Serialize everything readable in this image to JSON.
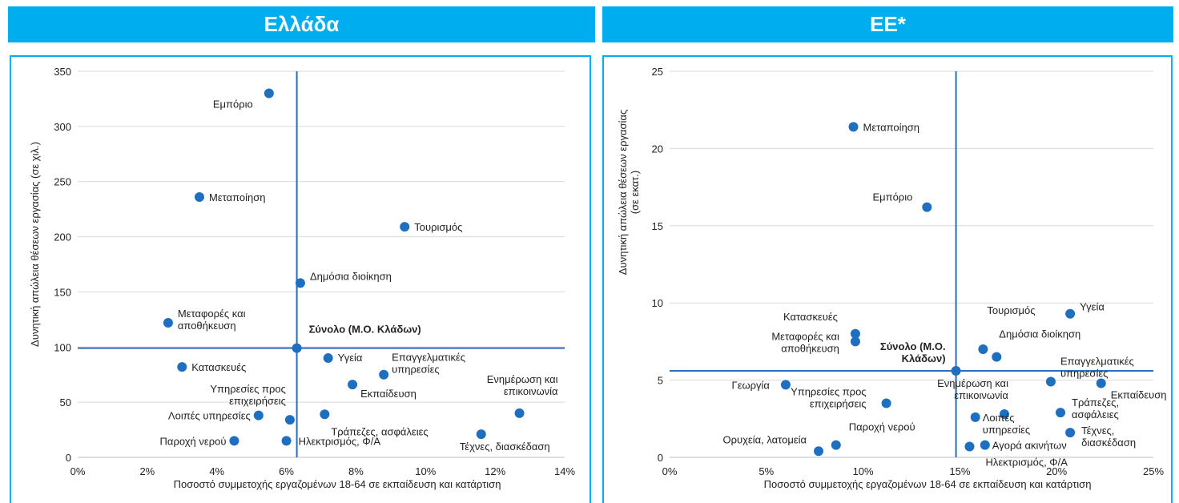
{
  "chart_data": [
    {
      "type": "scatter",
      "title": "Ελλάδα",
      "xlabel": "Ποσοστό συμμετοχής εργαζομένων 18-64 σε εκπαίδευση και κατάρτιση",
      "ylabel": "Δυνητική απώλεια θέσεων εργασίας (σε χιλ.)",
      "xlim": [
        0,
        14
      ],
      "ylim": [
        0,
        350
      ],
      "xticks": [
        "0%",
        "2%",
        "4%",
        "6%",
        "8%",
        "10%",
        "12%",
        "14%"
      ],
      "yticks": [
        "0",
        "50",
        "100",
        "150",
        "200",
        "250",
        "300",
        "350"
      ],
      "grid": "horizontal",
      "point_color": "#1f6fc1",
      "reference_lines": {
        "x": 6.3,
        "y": 99
      },
      "points": [
        {
          "label": "Εμπόριο",
          "x": 5.5,
          "y": 330
        },
        {
          "label": "Μεταποίηση",
          "x": 3.5,
          "y": 236
        },
        {
          "label": "Τουρισμός",
          "x": 9.4,
          "y": 209
        },
        {
          "label": "Δημόσια διοίκηση",
          "x": 6.4,
          "y": 158
        },
        {
          "label": "Μεταφορές και αποθήκευση",
          "x": 2.6,
          "y": 122
        },
        {
          "label": "Σύνολο (Μ.Ο. Κλάδων)",
          "x": 6.3,
          "y": 99,
          "bold": true
        },
        {
          "label": "Υγεία",
          "x": 7.2,
          "y": 90
        },
        {
          "label": "Επαγγελματικές υπηρεσίες",
          "x": 8.8,
          "y": 75
        },
        {
          "label": "Κατασκευές",
          "x": 3.0,
          "y": 82
        },
        {
          "label": "Εκπαίδευση",
          "x": 7.9,
          "y": 66
        },
        {
          "label": "Υπηρεσίες προς επιχειρήσεις",
          "x": 6.1,
          "y": 34
        },
        {
          "label": "Ενημέρωση και επικοινωνία",
          "x": 12.7,
          "y": 40
        },
        {
          "label": "Λοιπές υπηρεσίες",
          "x": 5.2,
          "y": 38
        },
        {
          "label": "Τράπεζες, ασφάλειες",
          "x": 7.1,
          "y": 39
        },
        {
          "label": "Τέχνες, διασκέδαση",
          "x": 11.6,
          "y": 21
        },
        {
          "label": "Παροχή νερού",
          "x": 4.5,
          "y": 15
        },
        {
          "label": "Ηλεκτρισμός, Φ/Α",
          "x": 6.0,
          "y": 15
        }
      ]
    },
    {
      "type": "scatter",
      "title": "ΕΕ*",
      "xlabel": "Ποσοστό συμμετοχής εργαζομένων 18-64 σε εκπαίδευση και κατάρτιση",
      "ylabel": "Δυνητική απώλεια θέσεων εργασίας (σε εκατ.)",
      "xlim": [
        0,
        25
      ],
      "ylim": [
        0,
        25
      ],
      "xticks": [
        "0%",
        "5%",
        "10%",
        "15%",
        "20%",
        "25%"
      ],
      "yticks": [
        "0",
        "5",
        "10",
        "15",
        "20",
        "25"
      ],
      "grid": "horizontal",
      "point_color": "#1f6fc1",
      "reference_lines": {
        "x": 14.8,
        "y": 5.6
      },
      "points": [
        {
          "label": "Μεταποίηση",
          "x": 9.5,
          "y": 21.4
        },
        {
          "label": "Εμπόριο",
          "x": 13.3,
          "y": 16.2
        },
        {
          "label": "Υγεία",
          "x": 20.7,
          "y": 9.3
        },
        {
          "label": "Τουρισμός",
          "x": 16.2,
          "y": 7.0
        },
        {
          "label": "Δημόσια διοίκηση",
          "x": 16.9,
          "y": 6.5
        },
        {
          "label": "Κατασκευές",
          "x": 9.6,
          "y": 8.0
        },
        {
          "label": "Μεταφορές και αποθήκευση",
          "x": 9.6,
          "y": 7.5
        },
        {
          "label": "Σύνολο (Μ.Ο. Κλάδων)",
          "x": 14.8,
          "y": 5.6,
          "bold": true
        },
        {
          "label": "Επαγγελματικές υπηρεσίες",
          "x": 19.7,
          "y": 4.9
        },
        {
          "label": "Εκπαίδευση",
          "x": 22.3,
          "y": 4.8
        },
        {
          "label": "Γεωργία",
          "x": 6.0,
          "y": 4.7
        },
        {
          "label": "Υπηρεσίες προς επιχειρήσεις",
          "x": 11.2,
          "y": 3.5
        },
        {
          "label": "Ενημέρωση και επικοινωνία",
          "x": 17.3,
          "y": 2.8
        },
        {
          "label": "Λοιπές υπηρεσίες",
          "x": 15.8,
          "y": 2.6
        },
        {
          "label": "Τράπεζες, ασφάλειες",
          "x": 20.2,
          "y": 2.9
        },
        {
          "label": "Τέχνες, διασκέδαση",
          "x": 20.7,
          "y": 1.6
        },
        {
          "label": "Παροχή νερού",
          "x": 8.6,
          "y": 0.8
        },
        {
          "label": "Αγορά ακινήτων",
          "x": 16.3,
          "y": 0.8
        },
        {
          "label": "Ηλεκτρισμός, Φ/Α",
          "x": 15.5,
          "y": 0.7
        },
        {
          "label": "Ορυχεία, λατομεία",
          "x": 7.7,
          "y": 0.4
        }
      ]
    }
  ]
}
